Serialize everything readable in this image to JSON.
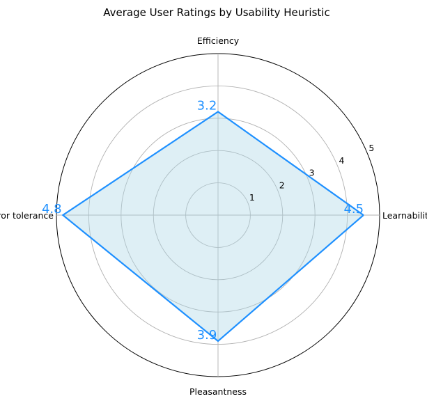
{
  "chart_data": {
    "type": "radar",
    "title": "Average User Ratings by Usability Heuristic",
    "axes": [
      "Learnability",
      "Efficiency",
      "Error tolerance",
      "Pleasantness"
    ],
    "values": [
      4.5,
      3.2,
      4.8,
      3.9
    ],
    "value_labels": [
      "4.5",
      "3.2",
      "4.8",
      "3.9"
    ],
    "rlim": [
      0,
      5
    ],
    "rticks": [
      1,
      2,
      3,
      4,
      5
    ],
    "rtick_labels": [
      "1",
      "2",
      "3",
      "4",
      "5"
    ],
    "grid": true,
    "colors": {
      "line": "#1e90ff",
      "fill": "#add8e6",
      "grid": "#b0b0b0",
      "frame": "#000000",
      "value_text": "#1e90ff"
    }
  }
}
